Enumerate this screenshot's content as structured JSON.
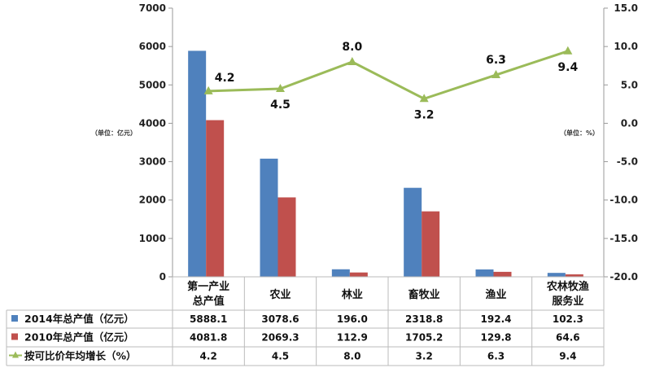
{
  "chart_data": {
    "type": "bar",
    "categories": [
      [
        "第一产业",
        "总产值"
      ],
      [
        "农业"
      ],
      [
        "林业"
      ],
      [
        "畜牧业"
      ],
      [
        "渔业"
      ],
      [
        "农林牧渔",
        "服务业"
      ]
    ],
    "y_left": {
      "range": [
        0,
        7000
      ],
      "ticks": [
        "0",
        "1000",
        "2000",
        "3000",
        "4000",
        "5000",
        "6000",
        "7000"
      ],
      "unit": "（单位：亿元）"
    },
    "y_right": {
      "range": [
        -20,
        15
      ],
      "ticks": [
        "-20.0",
        "-15.0",
        "-10.0",
        "-5.0",
        "0.0",
        "5.0",
        "10.0",
        "15.0"
      ],
      "unit": "（单位：%）"
    },
    "series": [
      {
        "name": "2014年总产值（亿元）",
        "kind": "bar",
        "axis": "left",
        "color": "#4f81bd",
        "values": [
          5888.1,
          3078.6,
          196.0,
          2318.8,
          192.4,
          102.3
        ],
        "labels": [
          "5888.1",
          "3078.6",
          "196.0",
          "2318.8",
          "192.4",
          "102.3"
        ]
      },
      {
        "name": "2010年总产值（亿元）",
        "kind": "bar",
        "axis": "left",
        "color": "#c0504d",
        "values": [
          4081.8,
          2069.3,
          112.9,
          1705.2,
          129.8,
          64.6
        ],
        "labels": [
          "4081.8",
          "2069.3",
          "112.9",
          "1705.2",
          "129.8",
          "64.6"
        ]
      },
      {
        "name": "按可比价年均增长（%）",
        "kind": "line",
        "axis": "right",
        "color": "#9bbb59",
        "values": [
          4.2,
          4.5,
          8.0,
          3.2,
          6.3,
          9.4
        ],
        "labels": [
          "4.2",
          "4.5",
          "8.0",
          "3.2",
          "6.3",
          "9.4"
        ]
      }
    ],
    "grid": false,
    "legend": "data-table"
  }
}
